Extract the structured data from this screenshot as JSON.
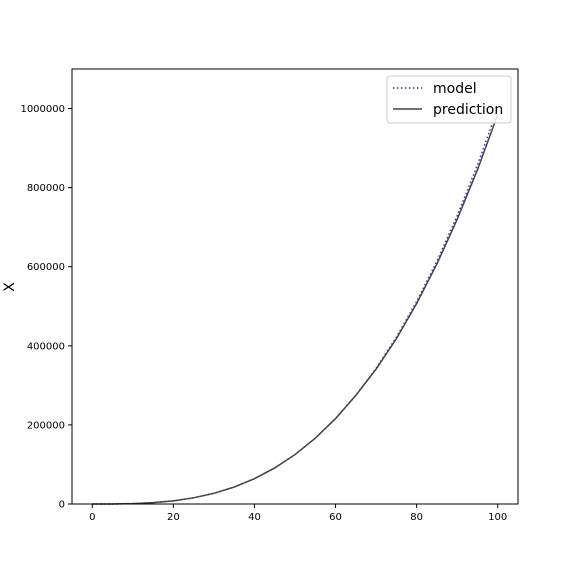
{
  "chart_data": {
    "type": "line",
    "title": "",
    "xlabel": "",
    "ylabel": "X",
    "xlim": [
      -5,
      105
    ],
    "ylim": [
      0,
      1100000
    ],
    "xticks": [
      0,
      20,
      40,
      60,
      80,
      100
    ],
    "yticks": [
      0,
      200000,
      400000,
      600000,
      800000,
      1000000
    ],
    "xtick_labels": [
      "0",
      "20",
      "40",
      "60",
      "80",
      "100"
    ],
    "ytick_labels": [
      "0",
      "200000",
      "400000",
      "600000",
      "800000",
      "1000000"
    ],
    "grid": false,
    "legend_position": "top-right",
    "x": [
      0,
      5,
      10,
      15,
      20,
      25,
      30,
      35,
      40,
      45,
      50,
      55,
      60,
      65,
      70,
      75,
      80,
      85,
      90,
      95,
      100
    ],
    "series": [
      {
        "name": "model",
        "style": "dotted",
        "color": "#3333cc",
        "values": [
          0,
          125,
          1000,
          3375,
          8000,
          15625,
          27000,
          42875,
          64000,
          91125,
          125000,
          166375,
          216000,
          274625,
          343000,
          421875,
          512000,
          614125,
          729000,
          857375,
          1000000
        ]
      },
      {
        "name": "prediction",
        "style": "solid",
        "color": "#444444",
        "values": [
          0,
          125,
          1000,
          3375,
          8000,
          15625,
          27000,
          42875,
          64000,
          91125,
          125000,
          166375,
          216000,
          274625,
          341000,
          418000,
          507000,
          607000,
          720000,
          845000,
          985000
        ]
      }
    ]
  }
}
